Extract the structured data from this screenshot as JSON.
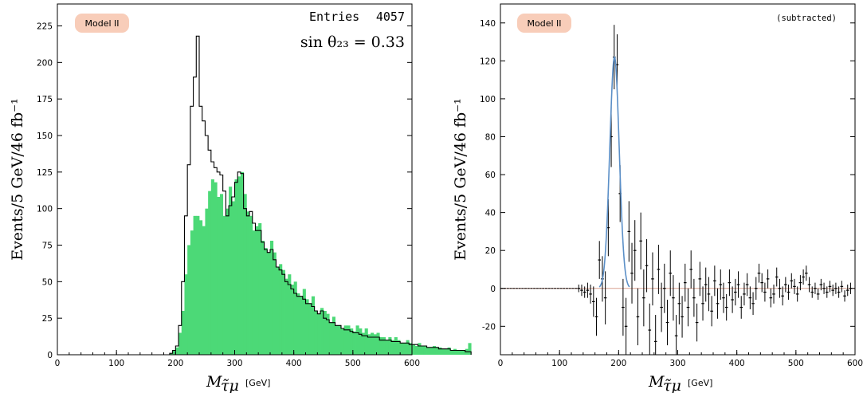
{
  "chart_data": [
    {
      "type": "bar",
      "panel": "left",
      "badge": "Model II",
      "entries_label": "Entries",
      "entries_value": "4057",
      "annotation": "sin θ₂₃ = 0.33",
      "ylabel": "Events/5 GeV/46 fb⁻¹",
      "xlabel": "M",
      "xlabel_sub": "τ̃μ",
      "xunit": "[GeV]",
      "xlim": [
        0,
        600
      ],
      "ylim": [
        0,
        240
      ],
      "xticks": [
        0,
        100,
        200,
        300,
        400,
        500,
        600
      ],
      "yticks": [
        0,
        25,
        50,
        75,
        100,
        125,
        150,
        175,
        200,
        225
      ],
      "bin_width": 5,
      "bin_start": 0,
      "colors": {
        "filled": "#4cd977",
        "line": "#000000",
        "badge": "#f8cdb9"
      },
      "series": [
        {
          "style": "filled",
          "values": [
            0,
            0,
            0,
            0,
            0,
            0,
            0,
            0,
            0,
            0,
            0,
            0,
            0,
            0,
            0,
            0,
            0,
            0,
            0,
            0,
            0,
            0,
            0,
            0,
            0,
            0,
            0,
            0,
            0,
            0,
            0,
            0,
            0,
            0,
            0,
            0,
            0,
            0,
            1,
            3,
            5,
            15,
            30,
            55,
            75,
            85,
            95,
            95,
            92,
            88,
            100,
            112,
            120,
            118,
            108,
            110,
            95,
            100,
            115,
            105,
            120,
            122,
            125,
            110,
            98,
            95,
            85,
            88,
            90,
            78,
            73,
            70,
            78,
            70,
            60,
            62,
            58,
            52,
            55,
            48,
            50,
            42,
            40,
            45,
            38,
            35,
            40,
            30,
            28,
            32,
            30,
            28,
            22,
            26,
            20,
            20,
            18,
            20,
            20,
            18,
            16,
            20,
            18,
            15,
            18,
            14,
            15,
            14,
            15,
            12,
            12,
            10,
            12,
            10,
            12,
            10,
            8,
            8,
            10,
            8,
            7,
            6,
            8,
            6,
            6,
            5,
            5,
            6,
            5,
            5,
            4,
            4,
            5,
            3,
            4,
            3,
            3,
            3,
            4,
            8
          ]
        },
        {
          "style": "line",
          "values": [
            0,
            0,
            0,
            0,
            0,
            0,
            0,
            0,
            0,
            0,
            0,
            0,
            0,
            0,
            0,
            0,
            0,
            0,
            0,
            0,
            0,
            0,
            0,
            0,
            0,
            0,
            0,
            0,
            0,
            0,
            0,
            0,
            0,
            0,
            0,
            0,
            0,
            0,
            1,
            3,
            6,
            20,
            50,
            95,
            130,
            170,
            190,
            218,
            170,
            160,
            150,
            140,
            132,
            128,
            125,
            123,
            112,
            95,
            102,
            108,
            118,
            125,
            124,
            100,
            95,
            98,
            90,
            85,
            85,
            77,
            72,
            70,
            72,
            65,
            60,
            58,
            55,
            50,
            48,
            45,
            42,
            40,
            40,
            38,
            35,
            35,
            33,
            30,
            28,
            30,
            25,
            24,
            22,
            22,
            20,
            20,
            18,
            17,
            17,
            16,
            15,
            15,
            14,
            13,
            13,
            12,
            12,
            12,
            12,
            10,
            10,
            10,
            10,
            9,
            9,
            9,
            8,
            8,
            8,
            7,
            7,
            7,
            6,
            6,
            6,
            5,
            5,
            5,
            5,
            4,
            4,
            4,
            4,
            3,
            3,
            3,
            3,
            3,
            2,
            2
          ]
        }
      ]
    },
    {
      "type": "scatter",
      "panel": "right",
      "badge": "Model II",
      "annotation": "(subtracted)",
      "ylabel": "Events/5 GeV/46 fb⁻¹",
      "xlabel": "M",
      "xlabel_sub": "τ̃μ",
      "xunit": "[GeV]",
      "xlim": [
        0,
        600
      ],
      "ylim": [
        -35,
        150
      ],
      "xticks": [
        0,
        100,
        200,
        300,
        400,
        500,
        600
      ],
      "yticks": [
        -20,
        0,
        20,
        40,
        60,
        80,
        100,
        120,
        140
      ],
      "colors": {
        "points": "#000000",
        "fit": "#5b8fc7",
        "baseline": "#d9a090"
      },
      "fit": {
        "peak": 193,
        "amplitude": 122,
        "sigma": 8
      },
      "points": [
        {
          "x": 132.5,
          "y": 0,
          "err": 2
        },
        {
          "x": 137.5,
          "y": -1,
          "err": 3
        },
        {
          "x": 142.5,
          "y": -2,
          "err": 3
        },
        {
          "x": 147.5,
          "y": -1,
          "err": 4
        },
        {
          "x": 152.5,
          "y": -3,
          "err": 5
        },
        {
          "x": 157.5,
          "y": -7,
          "err": 8
        },
        {
          "x": 162.5,
          "y": -15,
          "err": 10
        },
        {
          "x": 167.5,
          "y": 15,
          "err": 10
        },
        {
          "x": 172.5,
          "y": 5,
          "err": 12
        },
        {
          "x": 177.5,
          "y": -5,
          "err": 14
        },
        {
          "x": 182.5,
          "y": 32,
          "err": 15
        },
        {
          "x": 187.5,
          "y": 80,
          "err": 16
        },
        {
          "x": 192.5,
          "y": 122,
          "err": 17
        },
        {
          "x": 197.5,
          "y": 118,
          "err": 16
        },
        {
          "x": 202.5,
          "y": 50,
          "err": 15
        },
        {
          "x": 207.5,
          "y": -10,
          "err": 15
        },
        {
          "x": 212.5,
          "y": -20,
          "err": 15
        },
        {
          "x": 217.5,
          "y": 30,
          "err": 16
        },
        {
          "x": 222.5,
          "y": 8,
          "err": 16
        },
        {
          "x": 227.5,
          "y": 20,
          "err": 16
        },
        {
          "x": 232.5,
          "y": -15,
          "err": 15
        },
        {
          "x": 237.5,
          "y": 25,
          "err": 15
        },
        {
          "x": 242.5,
          "y": -5,
          "err": 15
        },
        {
          "x": 247.5,
          "y": 12,
          "err": 14
        },
        {
          "x": 252.5,
          "y": -22,
          "err": 14
        },
        {
          "x": 257.5,
          "y": 5,
          "err": 14
        },
        {
          "x": 262.5,
          "y": -28,
          "err": 14
        },
        {
          "x": 267.5,
          "y": 10,
          "err": 13
        },
        {
          "x": 272.5,
          "y": -10,
          "err": 13
        },
        {
          "x": 277.5,
          "y": 0,
          "err": 13
        },
        {
          "x": 282.5,
          "y": -18,
          "err": 12
        },
        {
          "x": 287.5,
          "y": 8,
          "err": 12
        },
        {
          "x": 292.5,
          "y": -5,
          "err": 12
        },
        {
          "x": 297.5,
          "y": -25,
          "err": 11
        },
        {
          "x": 302.5,
          "y": -8,
          "err": 11
        },
        {
          "x": 307.5,
          "y": -15,
          "err": 11
        },
        {
          "x": 312.5,
          "y": 3,
          "err": 10
        },
        {
          "x": 317.5,
          "y": -10,
          "err": 10
        },
        {
          "x": 322.5,
          "y": 10,
          "err": 10
        },
        {
          "x": 327.5,
          "y": -5,
          "err": 10
        },
        {
          "x": 332.5,
          "y": -18,
          "err": 10
        },
        {
          "x": 337.5,
          "y": 5,
          "err": 9
        },
        {
          "x": 342.5,
          "y": -8,
          "err": 9
        },
        {
          "x": 347.5,
          "y": 2,
          "err": 9
        },
        {
          "x": 352.5,
          "y": -3,
          "err": 9
        },
        {
          "x": 357.5,
          "y": -12,
          "err": 8
        },
        {
          "x": 362.5,
          "y": 4,
          "err": 8
        },
        {
          "x": 367.5,
          "y": -8,
          "err": 8
        },
        {
          "x": 372.5,
          "y": 2,
          "err": 8
        },
        {
          "x": 377.5,
          "y": -5,
          "err": 8
        },
        {
          "x": 382.5,
          "y": -10,
          "err": 7
        },
        {
          "x": 387.5,
          "y": 3,
          "err": 7
        },
        {
          "x": 392.5,
          "y": -6,
          "err": 7
        },
        {
          "x": 397.5,
          "y": -2,
          "err": 7
        },
        {
          "x": 402.5,
          "y": 2,
          "err": 7
        },
        {
          "x": 407.5,
          "y": -10,
          "err": 6
        },
        {
          "x": 412.5,
          "y": -3,
          "err": 6
        },
        {
          "x": 417.5,
          "y": 2,
          "err": 6
        },
        {
          "x": 422.5,
          "y": -5,
          "err": 6
        },
        {
          "x": 427.5,
          "y": -8,
          "err": 6
        },
        {
          "x": 432.5,
          "y": 0,
          "err": 6
        },
        {
          "x": 437.5,
          "y": 8,
          "err": 5
        },
        {
          "x": 442.5,
          "y": 3,
          "err": 5
        },
        {
          "x": 447.5,
          "y": -2,
          "err": 5
        },
        {
          "x": 452.5,
          "y": 5,
          "err": 5
        },
        {
          "x": 457.5,
          "y": -5,
          "err": 5
        },
        {
          "x": 462.5,
          "y": -3,
          "err": 5
        },
        {
          "x": 467.5,
          "y": 6,
          "err": 5
        },
        {
          "x": 472.5,
          "y": 0,
          "err": 5
        },
        {
          "x": 477.5,
          "y": -4,
          "err": 5
        },
        {
          "x": 482.5,
          "y": 2,
          "err": 4
        },
        {
          "x": 487.5,
          "y": -2,
          "err": 4
        },
        {
          "x": 492.5,
          "y": 4,
          "err": 4
        },
        {
          "x": 497.5,
          "y": 1,
          "err": 4
        },
        {
          "x": 502.5,
          "y": -3,
          "err": 4
        },
        {
          "x": 507.5,
          "y": 3,
          "err": 4
        },
        {
          "x": 512.5,
          "y": 6,
          "err": 4
        },
        {
          "x": 517.5,
          "y": 8,
          "err": 4
        },
        {
          "x": 522.5,
          "y": 2,
          "err": 4
        },
        {
          "x": 527.5,
          "y": -2,
          "err": 3
        },
        {
          "x": 532.5,
          "y": 0,
          "err": 3
        },
        {
          "x": 537.5,
          "y": -3,
          "err": 3
        },
        {
          "x": 542.5,
          "y": 2,
          "err": 3
        },
        {
          "x": 547.5,
          "y": 0,
          "err": 3
        },
        {
          "x": 552.5,
          "y": -2,
          "err": 3
        },
        {
          "x": 557.5,
          "y": 1,
          "err": 3
        },
        {
          "x": 562.5,
          "y": -1,
          "err": 3
        },
        {
          "x": 567.5,
          "y": 0,
          "err": 3
        },
        {
          "x": 572.5,
          "y": -2,
          "err": 3
        },
        {
          "x": 577.5,
          "y": 1,
          "err": 3
        },
        {
          "x": 582.5,
          "y": -4,
          "err": 3
        },
        {
          "x": 587.5,
          "y": -1,
          "err": 3
        },
        {
          "x": 592.5,
          "y": 0,
          "err": 3
        }
      ]
    }
  ]
}
